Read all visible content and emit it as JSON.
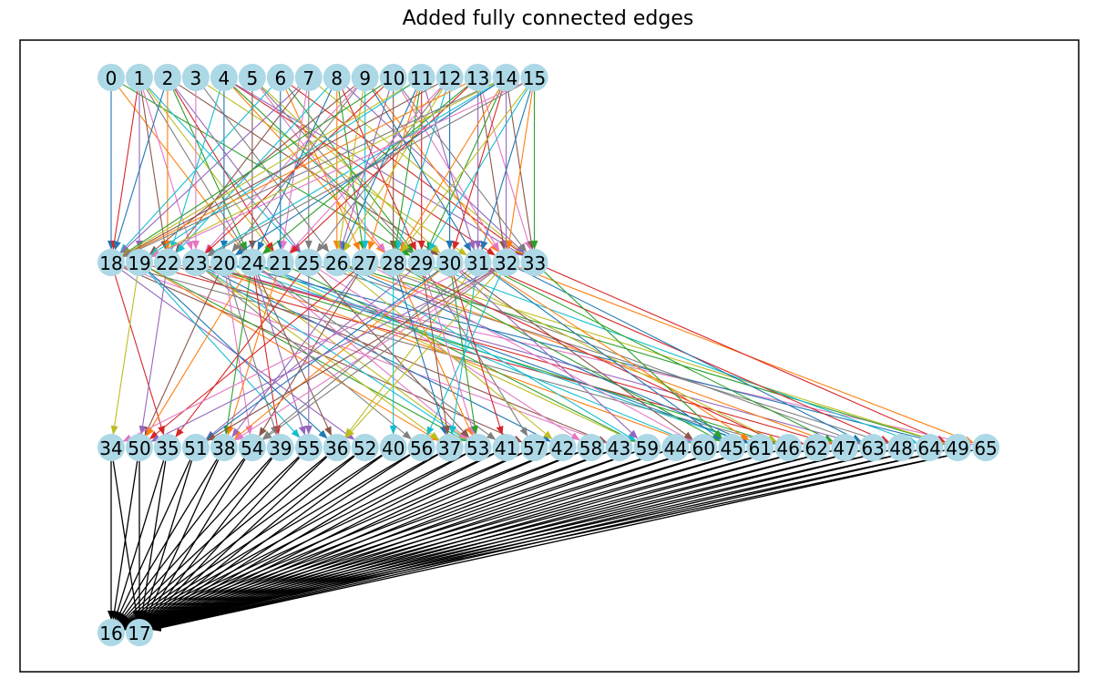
{
  "title": "Added fully connected edges",
  "colors": {
    "node_fill": "#add8e6",
    "frame": "#000000",
    "output_edge": "#000000",
    "edge_palette": [
      "#1f77b4",
      "#ff7f0e",
      "#2ca02c",
      "#d62728",
      "#9467bd",
      "#8c564b",
      "#e377c2",
      "#7f7f7f",
      "#bcbd22",
      "#17becf"
    ]
  },
  "layers": [
    [
      "0",
      "1",
      "2",
      "3",
      "4",
      "5",
      "6",
      "7",
      "8",
      "9",
      "10",
      "11",
      "12",
      "13",
      "14",
      "15"
    ],
    [
      "18",
      "19",
      "22",
      "23",
      "20",
      "24",
      "21",
      "25",
      "26",
      "27",
      "28",
      "29",
      "30",
      "31",
      "32",
      "33"
    ],
    [
      "34",
      "50",
      "35",
      "51",
      "38",
      "54",
      "39",
      "55",
      "36",
      "52",
      "40",
      "56",
      "37",
      "53",
      "41",
      "57",
      "42",
      "58",
      "43",
      "59",
      "44",
      "60",
      "45",
      "61",
      "46",
      "62",
      "47",
      "63",
      "48",
      "64",
      "49",
      "65"
    ],
    [
      "16",
      "17"
    ]
  ]
}
